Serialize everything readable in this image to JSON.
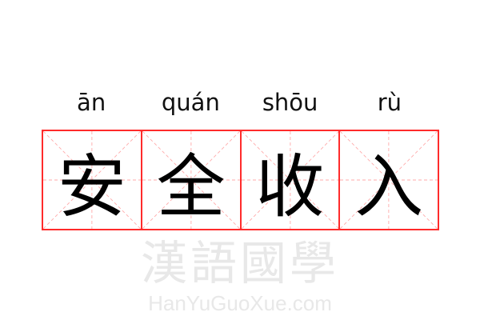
{
  "words": [
    {
      "pinyin": "ān",
      "hanzi": "安"
    },
    {
      "pinyin": "quán",
      "hanzi": "全"
    },
    {
      "pinyin": "shōu",
      "hanzi": "收"
    },
    {
      "pinyin": "rù",
      "hanzi": "入"
    }
  ],
  "watermark": {
    "chinese": "漢語國學",
    "latin": "HanYuGuoXue.com"
  },
  "colors": {
    "grid_border": "#ff2b2b",
    "guide_lines": "#ffaaaa",
    "text": "#000000"
  }
}
